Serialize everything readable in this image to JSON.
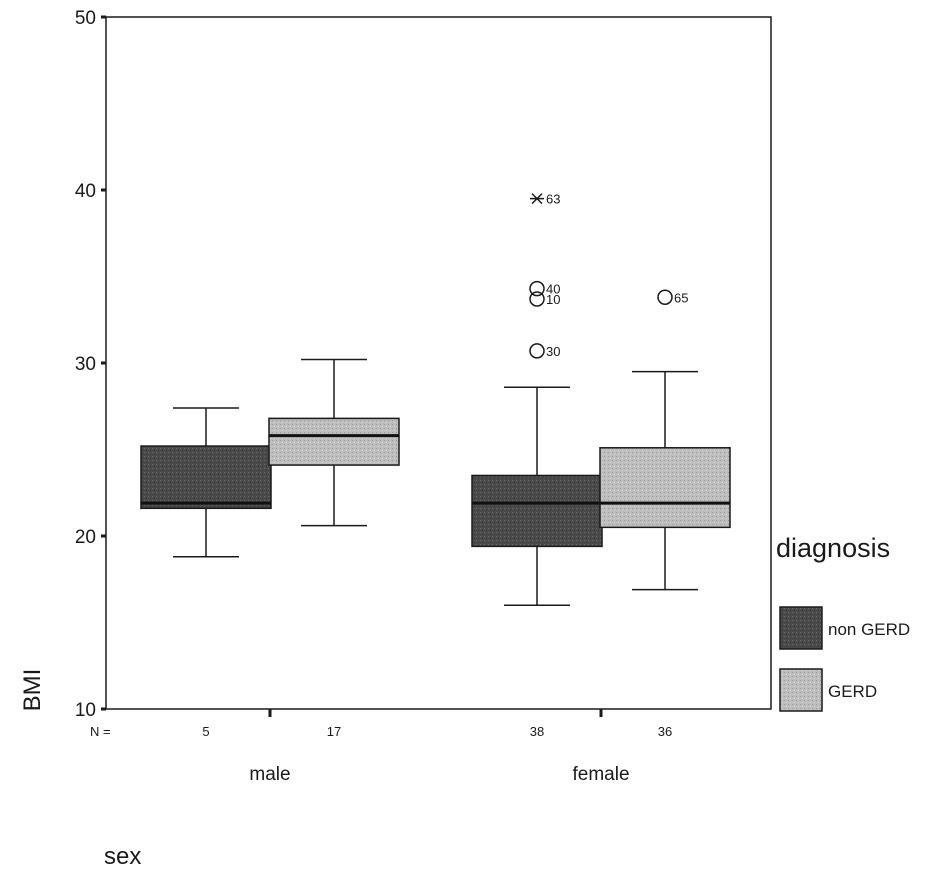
{
  "chart_data": {
    "type": "boxplot",
    "xlabel": "sex",
    "ylabel": "BMI",
    "ylim": [
      10,
      50
    ],
    "yticks": [
      10,
      20,
      30,
      40,
      50
    ],
    "categories": [
      "male",
      "female"
    ],
    "n_prefix": "N =",
    "legend_title": "diagnosis",
    "legend_position": "right",
    "colors": {
      "non GERD": "#4a4a4a",
      "GERD": "#bdbdbd"
    },
    "series": [
      {
        "name": "non GERD",
        "boxes": [
          {
            "category": "male",
            "n": "5",
            "whisker_low": 18.8,
            "q1": 21.6,
            "median": 21.9,
            "q3": 25.2,
            "whisker_high": 27.4,
            "outliers": []
          },
          {
            "category": "female",
            "n": "38",
            "whisker_low": 16.0,
            "q1": 19.4,
            "median": 21.9,
            "q3": 23.5,
            "whisker_high": 28.6,
            "outliers": [
              {
                "value": 39.5,
                "label": "63",
                "symbol": "star"
              },
              {
                "value": 34.3,
                "label": "40",
                "symbol": "circle"
              },
              {
                "value": 33.7,
                "label": "10",
                "symbol": "circle"
              },
              {
                "value": 30.7,
                "label": "30",
                "symbol": "circle"
              }
            ]
          }
        ]
      },
      {
        "name": "GERD",
        "boxes": [
          {
            "category": "male",
            "n": "17",
            "whisker_low": 20.6,
            "q1": 24.1,
            "median": 25.8,
            "q3": 26.8,
            "whisker_high": 30.2,
            "outliers": []
          },
          {
            "category": "female",
            "n": "36",
            "whisker_low": 16.9,
            "q1": 20.5,
            "median": 21.9,
            "q3": 25.1,
            "whisker_high": 29.5,
            "outliers": [
              {
                "value": 33.8,
                "label": "65",
                "symbol": "circle"
              }
            ]
          }
        ]
      }
    ]
  }
}
